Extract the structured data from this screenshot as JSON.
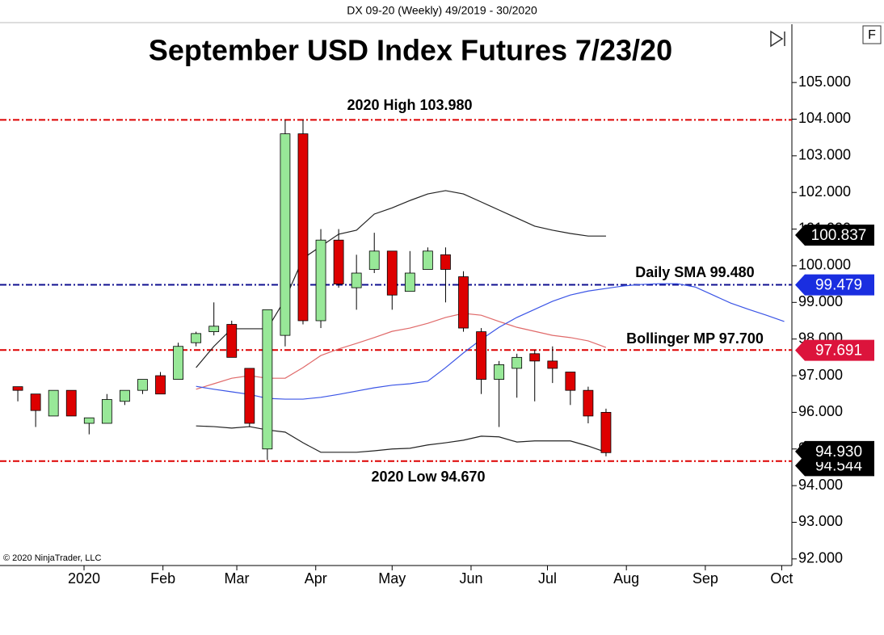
{
  "header": "DX 09-20 (Weekly)  49/2019 - 30/2020",
  "copyright": "© 2020 NinjaTrader, LLC",
  "button": "F",
  "chart_data": {
    "type": "candlestick",
    "title": "September USD Index Futures 7/23/20",
    "x": [
      "2019-12-06",
      "2019-12-13",
      "2019-12-20",
      "2019-12-27",
      "2020-01-03",
      "2020-01-10",
      "2020-01-17",
      "2020-01-24",
      "2020-01-31",
      "2020-02-07",
      "2020-02-14",
      "2020-02-21",
      "2020-02-28",
      "2020-03-06",
      "2020-03-13",
      "2020-03-20",
      "2020-03-27",
      "2020-04-03",
      "2020-04-10",
      "2020-04-17",
      "2020-04-24",
      "2020-05-01",
      "2020-05-08",
      "2020-05-15",
      "2020-05-22",
      "2020-05-29",
      "2020-06-05",
      "2020-06-12",
      "2020-06-19",
      "2020-06-26",
      "2020-07-03",
      "2020-07-10",
      "2020-07-17",
      "2020-07-24",
      "2020-07-31",
      "2020-08-07",
      "2020-08-14",
      "2020-08-21",
      "2020-08-28",
      "2020-09-04",
      "2020-09-11",
      "2020-09-18",
      "2020-09-25",
      "2020-10-02"
    ],
    "open": [
      96.7,
      96.5,
      95.9,
      96.6,
      95.7,
      95.7,
      96.3,
      96.6,
      97.0,
      96.9,
      97.9,
      98.2,
      98.4,
      97.2,
      95.0,
      98.1,
      103.6,
      98.5,
      100.7,
      99.4,
      99.9,
      100.4,
      99.3,
      99.9,
      100.3,
      99.7,
      98.2,
      96.9,
      97.2,
      97.6,
      97.4,
      97.1,
      96.6,
      96.0,
      null,
      null,
      null,
      null,
      null,
      null,
      null,
      null,
      null,
      null
    ],
    "high": [
      96.7,
      96.5,
      96.6,
      96.6,
      95.85,
      96.5,
      96.6,
      96.9,
      97.1,
      97.9,
      98.2,
      99.0,
      98.5,
      97.2,
      98.8,
      103.98,
      103.98,
      101.0,
      101.0,
      100.3,
      100.9,
      100.4,
      100.4,
      100.5,
      100.5,
      99.85,
      98.3,
      97.4,
      97.6,
      97.7,
      97.8,
      97.1,
      96.7,
      96.1,
      null,
      null,
      null,
      null,
      null,
      null,
      null,
      null,
      null,
      null
    ],
    "low": [
      96.3,
      95.6,
      95.9,
      95.9,
      95.4,
      95.7,
      96.2,
      96.5,
      96.5,
      96.9,
      97.8,
      98.1,
      97.5,
      95.6,
      94.7,
      97.8,
      98.4,
      98.3,
      99.4,
      98.8,
      99.8,
      98.8,
      99.3,
      99.9,
      99.0,
      98.2,
      96.5,
      95.6,
      96.4,
      96.3,
      96.8,
      96.2,
      95.7,
      94.8,
      null,
      null,
      null,
      null,
      null,
      null,
      null,
      null,
      null,
      null
    ],
    "close": [
      96.6,
      96.05,
      96.6,
      95.9,
      95.85,
      96.35,
      96.6,
      96.9,
      96.5,
      97.8,
      98.15,
      98.35,
      97.5,
      95.7,
      98.8,
      103.6,
      98.5,
      100.7,
      99.5,
      99.8,
      100.4,
      99.2,
      99.8,
      100.4,
      99.9,
      98.3,
      96.9,
      97.3,
      97.5,
      97.4,
      97.2,
      96.6,
      95.9,
      94.9,
      null,
      null,
      null,
      null,
      null,
      null,
      null,
      null,
      null,
      null
    ],
    "up_color": "#98e898",
    "down_color": "#dd0000",
    "series": [
      {
        "color": "#222222",
        "values": [
          null,
          null,
          null,
          null,
          null,
          null,
          null,
          null,
          null,
          null,
          97.22,
          97.8,
          98.28,
          98.28,
          98.28,
          99.09,
          100.2,
          100.53,
          100.86,
          100.97,
          101.41,
          101.58,
          101.78,
          101.96,
          102.05,
          101.96,
          101.74,
          101.52,
          101.3,
          101.08,
          100.97,
          100.88,
          100.81,
          100.81,
          null,
          null,
          null,
          null,
          null,
          null,
          null,
          null,
          null,
          null
        ]
      },
      {
        "color": "#e06a6a",
        "values": [
          null,
          null,
          null,
          null,
          null,
          null,
          null,
          null,
          null,
          null,
          96.63,
          96.78,
          96.93,
          97.0,
          96.93,
          96.93,
          97.22,
          97.55,
          97.73,
          97.88,
          98.04,
          98.21,
          98.3,
          98.43,
          98.59,
          98.7,
          98.65,
          98.48,
          98.32,
          98.21,
          98.1,
          98.04,
          97.95,
          97.77,
          null,
          null,
          null,
          null,
          null,
          null,
          null,
          null,
          null,
          null
        ]
      },
      {
        "color": "#222222",
        "values": [
          null,
          null,
          null,
          null,
          null,
          null,
          null,
          null,
          null,
          null,
          95.63,
          95.61,
          95.57,
          95.61,
          95.52,
          95.46,
          95.17,
          94.91,
          94.91,
          94.91,
          94.95,
          95.0,
          95.02,
          95.11,
          95.17,
          95.24,
          95.35,
          95.33,
          95.19,
          95.22,
          95.22,
          95.22,
          95.08,
          94.91,
          null,
          null,
          null,
          null,
          null,
          null,
          null,
          null,
          null,
          null
        ]
      },
      {
        "color": "#3b55e6",
        "values": [
          null,
          null,
          null,
          null,
          null,
          null,
          null,
          null,
          null,
          null,
          96.71,
          96.63,
          96.56,
          96.49,
          96.38,
          96.36,
          96.36,
          96.41,
          96.49,
          96.58,
          96.67,
          96.74,
          96.78,
          96.85,
          97.22,
          97.62,
          97.99,
          98.32,
          98.59,
          98.81,
          99.03,
          99.2,
          99.31,
          99.38,
          99.45,
          99.49,
          99.51,
          99.51,
          99.42,
          99.2,
          98.98,
          98.81,
          98.65,
          98.48
        ]
      }
    ],
    "reference_lines": [
      {
        "label": "2020 High 103.980",
        "value": 103.98,
        "color": "#dd0000"
      },
      {
        "label": "Daily SMA 99.480",
        "value": 99.48,
        "color": "#101090"
      },
      {
        "label": "Bollinger MP 97.700",
        "value": 97.7,
        "color": "#dd0000"
      },
      {
        "label": "2020 Low 94.670",
        "value": 94.67,
        "color": "#dd0000"
      }
    ],
    "price_markers": [
      {
        "value": 94.544,
        "label": "94.544",
        "color": "#000000"
      },
      {
        "value": 94.93,
        "label": "94.930",
        "color": "#000000"
      },
      {
        "value": 100.837,
        "label": "100.837",
        "color": "#000000"
      },
      {
        "value": 99.479,
        "label": "99.479",
        "color": "#1a2ee0"
      },
      {
        "value": 97.691,
        "label": "97.691",
        "color": "#dc143c"
      }
    ],
    "xlim": [
      "2019-11-29",
      "2020-10-05"
    ],
    "xticks": [
      {
        "value": "2020-01-01",
        "label": "2020"
      },
      {
        "value": "2020-02-01",
        "label": "Feb"
      },
      {
        "value": "2020-03-01",
        "label": "Mar"
      },
      {
        "value": "2020-04-01",
        "label": "Apr"
      },
      {
        "value": "2020-05-01",
        "label": "May"
      },
      {
        "value": "2020-06-01",
        "label": "Jun"
      },
      {
        "value": "2020-07-01",
        "label": "Jul"
      },
      {
        "value": "2020-08-01",
        "label": "Aug"
      },
      {
        "value": "2020-09-01",
        "label": "Sep"
      },
      {
        "value": "2020-10-01",
        "label": "Oct"
      }
    ],
    "ylim": [
      91.82,
      106.59
    ],
    "yticks": [
      {
        "value": 92,
        "label": "92.000"
      },
      {
        "value": 93,
        "label": "93.000"
      },
      {
        "value": 94,
        "label": "94.000"
      },
      {
        "value": 95,
        "label": "95.000"
      },
      {
        "value": 96,
        "label": "96.000"
      },
      {
        "value": 97,
        "label": "97.000"
      },
      {
        "value": 98,
        "label": "98.000"
      },
      {
        "value": 99,
        "label": "99.000"
      },
      {
        "value": 100,
        "label": "100.000"
      },
      {
        "value": 101,
        "label": "101.000"
      },
      {
        "value": 102,
        "label": "102.000"
      },
      {
        "value": 103,
        "label": "103.000"
      },
      {
        "value": 104,
        "label": "104.000"
      },
      {
        "value": 105,
        "label": "105.000"
      }
    ]
  }
}
